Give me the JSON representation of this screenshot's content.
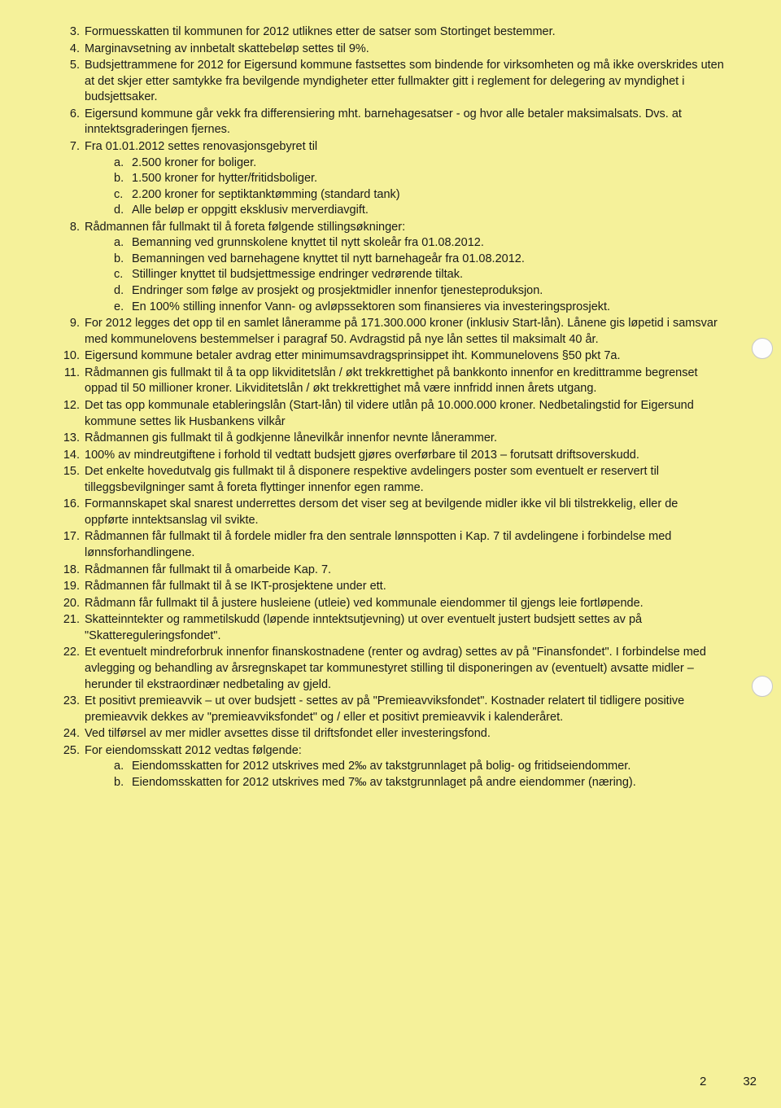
{
  "colors": {
    "page_bg": "#f5f19a",
    "text": "#1a1a1a"
  },
  "typography": {
    "font_family": "Arial, Helvetica, sans-serif",
    "font_size_pt": 11,
    "line_height": 1.35
  },
  "items": [
    {
      "n": "3.",
      "text": "Formuesskatten til kommunen for 2012 utliknes etter de satser som Stortinget bestemmer."
    },
    {
      "n": "4.",
      "text": "Marginavsetning av innbetalt skattebeløp settes til 9%."
    },
    {
      "n": "5.",
      "text": "Budsjettrammene for 2012 for Eigersund kommune fastsettes som bindende for virksomheten og må ikke overskrides uten at det skjer etter samtykke fra bevilgende myndigheter etter fullmakter gitt i reglement for delegering av myndighet i budsjettsaker."
    },
    {
      "n": "6.",
      "text": "Eigersund kommune går vekk fra differensiering mht. barnehagesatser - og hvor alle betaler maksimalsats. Dvs. at inntektsgraderingen fjernes."
    },
    {
      "n": "7.",
      "text": "Fra 01.01.2012 settes renovasjonsgebyret til",
      "sub": [
        {
          "l": "a.",
          "t": "2.500 kroner for boliger."
        },
        {
          "l": "b.",
          "t": "1.500 kroner for hytter/fritidsboliger."
        },
        {
          "l": "c.",
          "t": "2.200 kroner for septiktanktømming (standard tank)"
        },
        {
          "l": "d.",
          "t": "Alle beløp er oppgitt eksklusiv merverdiavgift."
        }
      ]
    },
    {
      "n": "8.",
      "text": "Rådmannen får fullmakt til å foreta følgende stillingsøkninger:",
      "sub": [
        {
          "l": "a.",
          "t": "Bemanning ved grunnskolene knyttet til nytt skoleår fra 01.08.2012."
        },
        {
          "l": "b.",
          "t": "Bemanningen ved barnehagene knyttet til nytt barnehageår fra 01.08.2012."
        },
        {
          "l": "c.",
          "t": "Stillinger knyttet til budsjettmessige endringer vedrørende tiltak."
        },
        {
          "l": "d.",
          "t": "Endringer som følge av prosjekt og prosjektmidler innenfor tjenesteproduksjon."
        },
        {
          "l": "e.",
          "t": "En 100% stilling innenfor Vann- og avløpssektoren som finansieres via investeringsprosjekt."
        }
      ]
    },
    {
      "n": "9.",
      "text": "For 2012 legges det opp til en samlet låneramme på 171.300.000 kroner (inklusiv Start-lån). Lånene gis løpetid i samsvar med kommunelovens bestemmelser i paragraf 50. Avdragstid på nye lån settes til maksimalt 40 år."
    },
    {
      "n": "10.",
      "text": "Eigersund kommune betaler avdrag etter minimumsavdragsprinsippet iht. Kommunelovens §50 pkt 7a."
    },
    {
      "n": "11.",
      "text": "Rådmannen gis fullmakt til å ta opp likviditetslån / økt trekkrettighet på bankkonto innenfor en kredittramme begrenset oppad til 50 millioner kroner. Likviditetslån / økt trekkrettighet må være innfridd innen årets utgang."
    },
    {
      "n": "12.",
      "text": "Det tas opp kommunale etableringslån (Start-lån) til videre utlån på 10.000.000 kroner. Nedbetalingstid for Eigersund kommune settes lik Husbankens vilkår"
    },
    {
      "n": "13.",
      "text": "Rådmannen gis fullmakt til å godkjenne lånevilkår innenfor nevnte lånerammer."
    },
    {
      "n": "14.",
      "text": "100% av mindreutgiftene i forhold til vedtatt budsjett gjøres overførbare til 2013 – forutsatt driftsoverskudd."
    },
    {
      "n": "15.",
      "text": "Det enkelte hovedutvalg gis fullmakt til å disponere respektive avdelingers poster som eventuelt er reservert til tilleggsbevilgninger samt å foreta flyttinger innenfor egen ramme."
    },
    {
      "n": "16.",
      "text": "Formannskapet skal snarest underrettes dersom det viser seg at bevilgende midler ikke vil bli tilstrekkelig, eller de oppførte inntektsanslag vil svikte."
    },
    {
      "n": "17.",
      "text": "Rådmannen får fullmakt til å fordele midler fra den sentrale lønnspotten i Kap. 7 til avdelingene i forbindelse med lønnsforhandlingene."
    },
    {
      "n": "18.",
      "text": "Rådmannen får fullmakt til å omarbeide Kap. 7."
    },
    {
      "n": "19.",
      "text": "Rådmannen får fullmakt til å se IKT-prosjektene under ett."
    },
    {
      "n": "20.",
      "text": "Rådmann får fullmakt til å justere husleiene (utleie) ved kommunale eiendommer til gjengs leie fortløpende."
    },
    {
      "n": "21.",
      "text": "Skatteinntekter og rammetilskudd (løpende inntektsutjevning) ut over eventuelt justert budsjett settes av på \"Skattereguleringsfondet\"."
    },
    {
      "n": "22.",
      "text": "Et eventuelt mindreforbruk innenfor finanskostnadene (renter og avdrag) settes av på \"Finansfondet\". I forbindelse med avlegging og behandling av årsregnskapet tar kommunestyret stilling til disponeringen av (eventuelt) avsatte midler – herunder til ekstraordinær nedbetaling av gjeld."
    },
    {
      "n": "23.",
      "text": "Et positivt premieavvik – ut over budsjett - settes av på \"Premieavviksfondet\". Kostnader relatert til tidligere positive premieavvik dekkes av \"premieavviksfondet\" og / eller et positivt premieavvik i kalenderåret."
    },
    {
      "n": "24.",
      "text": "Ved tilførsel av mer midler avsettes disse til driftsfondet eller investeringsfond."
    },
    {
      "n": "25.",
      "text": "For eiendomsskatt 2012 vedtas følgende:",
      "sub": [
        {
          "l": "a.",
          "t": "Eiendomsskatten for 2012 utskrives med 2‰ av takstgrunnlaget på bolig- og fritidseiendommer."
        },
        {
          "l": "b.",
          "t": "Eiendomsskatten for 2012 utskrives med 7‰ av takstgrunnlaget på andre eiendommer (næring)."
        }
      ]
    }
  ],
  "footer": {
    "page_inner": "2",
    "page_outer": "32"
  }
}
